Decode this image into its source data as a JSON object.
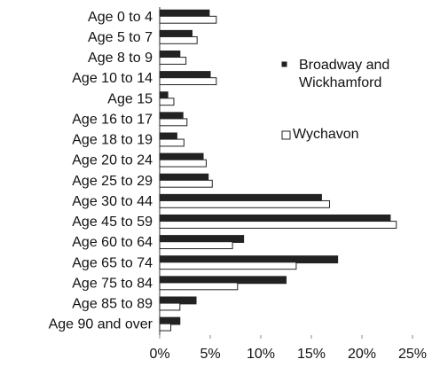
{
  "chart_data": {
    "type": "bar",
    "orientation": "horizontal",
    "categories": [
      "Age 0 to 4",
      "Age 5 to 7",
      "Age 8 to 9",
      "Age 10 to 14",
      "Age 15",
      "Age 16 to 17",
      "Age 18 to 19",
      "Age 20 to 24",
      "Age 25 to 29",
      "Age 30 to 44",
      "Age 45 to 59",
      "Age 60 to 64",
      "Age 65 to 74",
      "Age 75 to 84",
      "Age 85 to 89",
      "Age 90 and over"
    ],
    "series": [
      {
        "name": "Broadway and Wickhamford",
        "color": "#222222",
        "values": [
          4.9,
          3.2,
          2.0,
          5.0,
          0.8,
          2.3,
          1.7,
          4.3,
          4.8,
          16.0,
          22.8,
          8.3,
          17.6,
          12.5,
          3.6,
          2.0
        ]
      },
      {
        "name": "Wychavon",
        "color": "#ffffff",
        "values": [
          5.6,
          3.7,
          2.6,
          5.6,
          1.4,
          2.7,
          2.4,
          4.6,
          5.2,
          16.8,
          23.4,
          7.2,
          13.5,
          7.7,
          2.0,
          1.1
        ]
      }
    ],
    "xlim": [
      0,
      25
    ],
    "xticks": [
      {
        "value": 0,
        "label": "0%"
      },
      {
        "value": 5,
        "label": "5%"
      },
      {
        "value": 10,
        "label": "10%"
      },
      {
        "value": 15,
        "label": "15%"
      },
      {
        "value": 20,
        "label": "20%"
      },
      {
        "value": 25,
        "label": "25%"
      }
    ]
  }
}
